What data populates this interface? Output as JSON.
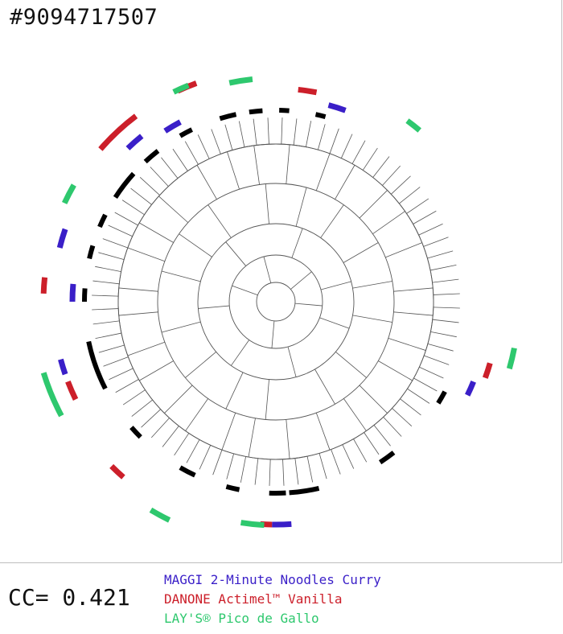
{
  "header": {
    "id_text": "#9094717507"
  },
  "footer": {
    "cc_text": "CC= 0.421"
  },
  "colors": {
    "tree": "#555555",
    "ring": "#000000"
  },
  "legend": [
    {
      "label": "MAGGI 2-Minute Noodles Curry",
      "color": "#3a1fc8"
    },
    {
      "label": "DANONE Actimel™ Vanilla",
      "color": "#cc1f2a"
    },
    {
      "label": "LAY'S® Pico de Gallo",
      "color": "#2ec86e"
    }
  ],
  "tree": {
    "leaf_count": 80,
    "black_ring_segments": [
      [
        253,
        258
      ],
      [
        262,
        266
      ],
      [
        271,
        274
      ],
      [
        282,
        285
      ],
      [
        240,
        244
      ],
      [
        227,
        232
      ],
      [
        213,
        222
      ],
      [
        203,
        207
      ],
      [
        193,
        197
      ],
      [
        180,
        184
      ],
      [
        153,
        168
      ],
      [
        135,
        139
      ],
      [
        115,
        120
      ],
      [
        101,
        105
      ],
      [
        87,
        92
      ],
      [
        77,
        86
      ],
      [
        52,
        57
      ],
      [
        28,
        32
      ]
    ],
    "color_tracks": {
      "MAGGI 2-Minute Noodles Curry": [
        [
          285,
          290
        ],
        [
          226,
          231
        ],
        [
          237,
          242
        ],
        [
          194,
          199
        ],
        [
          180,
          185
        ],
        [
          161,
          165
        ],
        [
          22,
          26
        ],
        [
          86,
          91
        ]
      ],
      "DANONE Actimel™ Vanilla": [
        [
          276,
          281
        ],
        [
          245,
          250
        ],
        [
          221,
          233
        ],
        [
          182,
          186
        ],
        [
          154,
          159
        ],
        [
          131,
          135
        ],
        [
          16,
          20
        ],
        [
          91,
          94
        ]
      ],
      "LAY'S® Pico de Gallo": [
        [
          244,
          248
        ],
        [
          258,
          264
        ],
        [
          205,
          210
        ],
        [
          152,
          163
        ],
        [
          116,
          121
        ],
        [
          93,
          99
        ],
        [
          306,
          310
        ],
        [
          11,
          16
        ]
      ]
    }
  }
}
